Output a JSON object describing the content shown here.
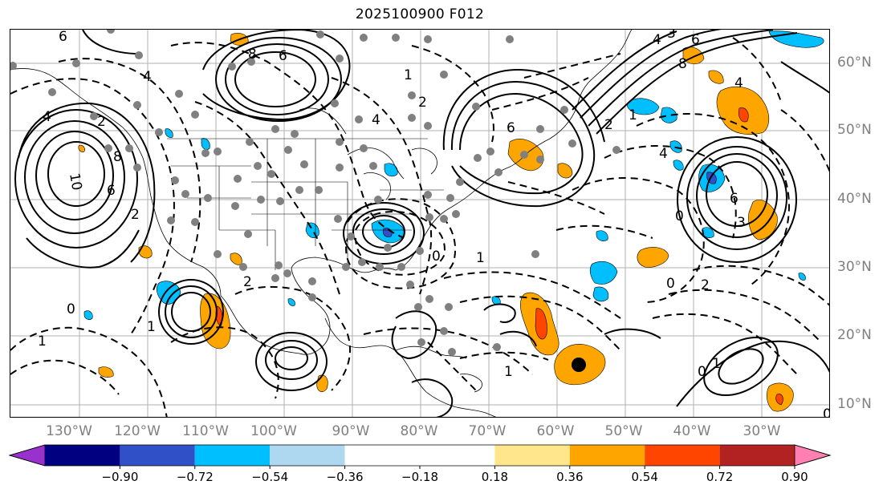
{
  "title": "2025100900 F012",
  "lon_labels": [
    "130°W",
    "120°W",
    "110°W",
    "100°W",
    "90°W",
    "80°W",
    "70°W",
    "60°W",
    "50°W",
    "40°W",
    "30°W"
  ],
  "lat_labels": [
    "60°N",
    "50°N",
    "40°N",
    "30°N",
    "20°N",
    "10°N"
  ],
  "colorbar": {
    "colors": [
      "#9932cc",
      "#000080",
      "#3050c8",
      "#00bfff",
      "#add8f0",
      "#ffffff",
      "#ffffff",
      "#ffe68c",
      "#ffa500",
      "#ff4500",
      "#b22222",
      "#ff80b0"
    ],
    "tick_labels": [
      "−0.90",
      "−0.72",
      "−0.54",
      "−0.36",
      "−0.18",
      "0.18",
      "0.36",
      "0.54",
      "0.72",
      "0.90"
    ]
  },
  "contour_labels": [
    "6",
    "4",
    "2",
    "4",
    "8",
    "6",
    "10",
    "8",
    "6",
    "2",
    "1",
    "4",
    "2",
    "1",
    "2",
    "6",
    "4",
    "3",
    "2",
    "1",
    "1",
    "0",
    "0",
    "1",
    "4",
    "6",
    "8",
    "6",
    "4",
    "3",
    "0",
    "2",
    "1",
    "0",
    "1",
    "0",
    "0"
  ]
}
